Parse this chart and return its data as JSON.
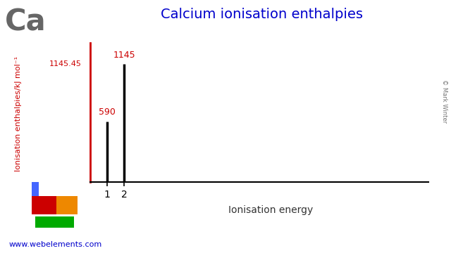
{
  "title": "Calcium ionisation enthalpies",
  "element_symbol": "Ca",
  "xlabel": "Ionisation energy",
  "ylabel": "Ionisation enthalpies/kJ mol⁻¹",
  "ionisation_numbers": [
    1,
    2
  ],
  "ionisation_values": [
    590,
    1145
  ],
  "ymax": 1145.45,
  "ymax_label": "1145.45",
  "bar_labels": [
    "590",
    "1145"
  ],
  "title_color": "#0000cc",
  "element_color": "#666666",
  "ylabel_color": "#cc0000",
  "ymax_label_color": "#cc0000",
  "bar_label_color": "#cc0000",
  "axis_color": "#cc0000",
  "bar_color": "#000000",
  "tick_color": "#000000",
  "website": "www.webelements.com",
  "website_color": "#0000cc",
  "copyright": "© Mark Winter",
  "background_color": "#ffffff",
  "xlim_max": 20,
  "pt_blue": "#4466ff",
  "pt_red": "#cc0000",
  "pt_orange": "#ee8800",
  "pt_green": "#00aa00"
}
